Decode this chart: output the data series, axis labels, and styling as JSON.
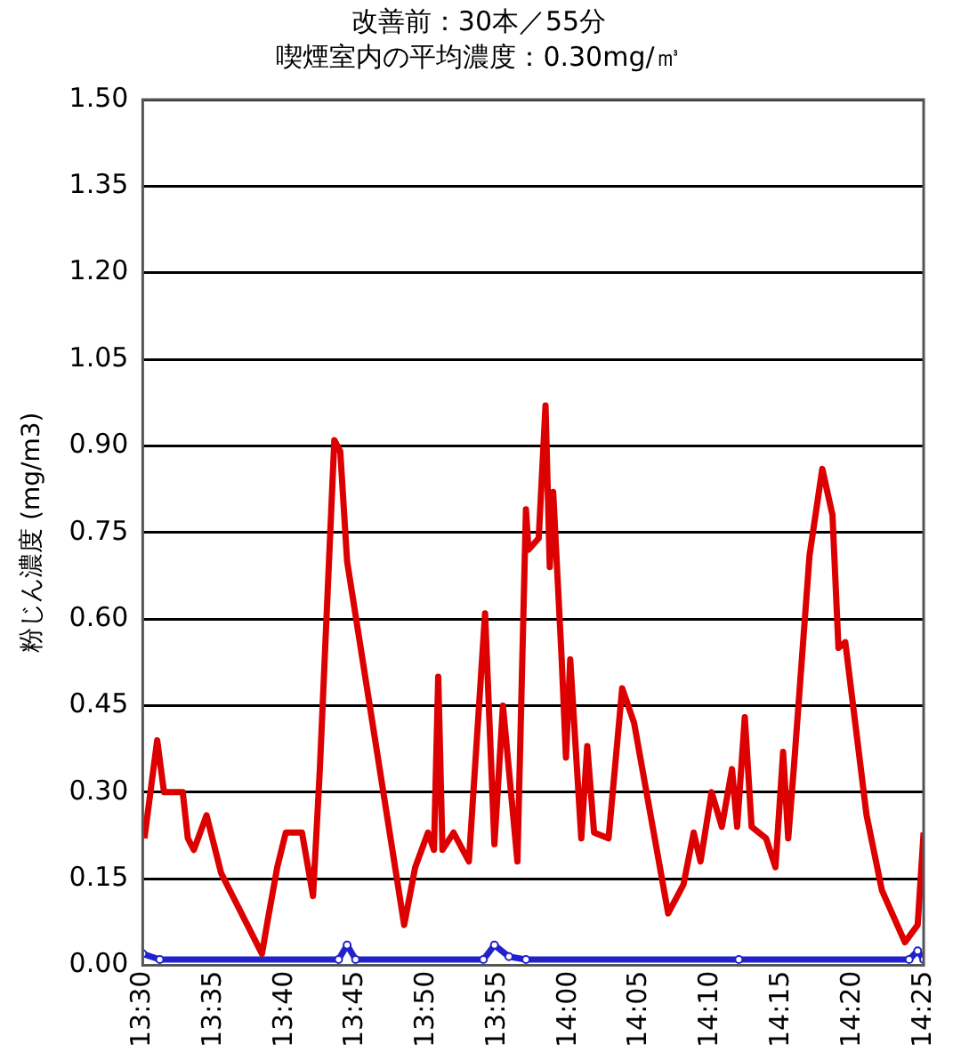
{
  "chart_data": {
    "type": "line",
    "title": "改善前：30本／55分",
    "subtitle": "喫煙室内の平均濃度：0.30mg/㎥",
    "ylabel": "粉じん濃度 (mg/m3)",
    "xlim": [
      13.5,
      14.417
    ],
    "xticks": [
      {
        "value": 13.5,
        "label": "13:30"
      },
      {
        "value": 13.5833,
        "label": "13:35"
      },
      {
        "value": 13.6667,
        "label": "13:40"
      },
      {
        "value": 13.75,
        "label": "13:45"
      },
      {
        "value": 13.8333,
        "label": "13:50"
      },
      {
        "value": 13.9167,
        "label": "13:55"
      },
      {
        "value": 14,
        "label": "14:00"
      },
      {
        "value": 14.0833,
        "label": "14:05"
      },
      {
        "value": 14.1667,
        "label": "14:10"
      },
      {
        "value": 14.25,
        "label": "14:15"
      },
      {
        "value": 14.3333,
        "label": "14:20"
      },
      {
        "value": 14.417,
        "label": "14:25"
      }
    ],
    "ylim": [
      0,
      1.5
    ],
    "yticks": [
      {
        "value": 0,
        "label": "0.00"
      },
      {
        "value": 0.15,
        "label": "0.15"
      },
      {
        "value": 0.3,
        "label": "0.30"
      },
      {
        "value": 0.45,
        "label": "0.45"
      },
      {
        "value": 0.6,
        "label": "0.60"
      },
      {
        "value": 0.75,
        "label": "0.75"
      },
      {
        "value": 0.9,
        "label": "0.90"
      },
      {
        "value": 1.05,
        "label": "1.05"
      },
      {
        "value": 1.2,
        "label": "1.20"
      },
      {
        "value": 1.35,
        "label": "1.35"
      },
      {
        "value": 1.5,
        "label": "1.50"
      }
    ],
    "grid": "y",
    "legend": false,
    "series": [
      {
        "color": "#dd0000",
        "marker": "none",
        "x": [
          13.502,
          13.517,
          13.525,
          13.547,
          13.553,
          13.56,
          13.575,
          13.592,
          13.64,
          13.647,
          13.658,
          13.668,
          13.687,
          13.7,
          13.708,
          13.725,
          13.732,
          13.74,
          13.807,
          13.82,
          13.835,
          13.842,
          13.847,
          13.852,
          13.865,
          13.883,
          13.902,
          13.913,
          13.923,
          13.94,
          13.95,
          13.953,
          13.965,
          13.973,
          13.978,
          13.982,
          13.992,
          13.997,
          14.002,
          14.015,
          14.022,
          14.03,
          14.047,
          14.063,
          14.077,
          14.117,
          14.135,
          14.147,
          14.155,
          14.168,
          14.18,
          14.192,
          14.198,
          14.207,
          14.215,
          14.232,
          14.243,
          14.252,
          14.258,
          14.265,
          14.283,
          14.298,
          14.31,
          14.317,
          14.325,
          14.35,
          14.368,
          14.395,
          14.41,
          14.417
        ],
        "values": [
          0.22,
          0.39,
          0.3,
          0.3,
          0.22,
          0.2,
          0.26,
          0.16,
          0.02,
          0.08,
          0.17,
          0.23,
          0.23,
          0.12,
          0.34,
          0.91,
          0.89,
          0.7,
          0.07,
          0.17,
          0.23,
          0.2,
          0.5,
          0.2,
          0.23,
          0.18,
          0.61,
          0.21,
          0.45,
          0.18,
          0.79,
          0.72,
          0.74,
          0.97,
          0.69,
          0.82,
          0.53,
          0.36,
          0.53,
          0.22,
          0.38,
          0.23,
          0.22,
          0.48,
          0.42,
          0.09,
          0.14,
          0.23,
          0.18,
          0.3,
          0.24,
          0.34,
          0.24,
          0.43,
          0.24,
          0.22,
          0.17,
          0.37,
          0.22,
          0.35,
          0.71,
          0.86,
          0.78,
          0.55,
          0.56,
          0.26,
          0.13,
          0.04,
          0.07,
          0.23
        ]
      },
      {
        "color": "#2222cc",
        "marker": "circle",
        "x": [
          13.5,
          13.52,
          13.73,
          13.74,
          13.75,
          13.9,
          13.913,
          13.93,
          13.95,
          14.2,
          14.4,
          14.41,
          14.417
        ],
        "values": [
          0.02,
          0.01,
          0.01,
          0.035,
          0.01,
          0.01,
          0.035,
          0.015,
          0.01,
          0.01,
          0.01,
          0.025,
          0.01
        ]
      }
    ]
  }
}
